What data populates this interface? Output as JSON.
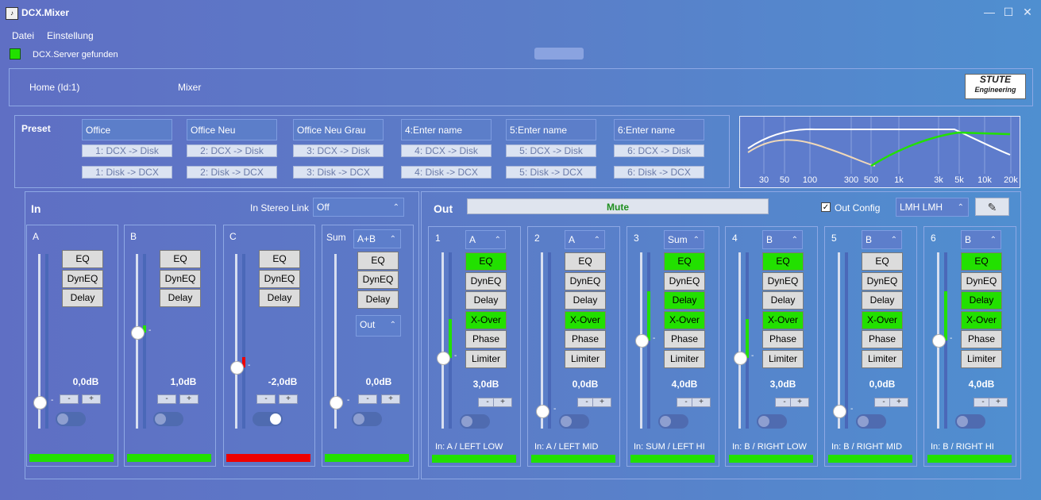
{
  "window": {
    "title": "DCX.Mixer",
    "icon": "speaker-icon"
  },
  "menu": [
    "Datei",
    "Einstellung"
  ],
  "status": {
    "text": "DCX.Server gefunden",
    "color": "#22e000"
  },
  "nav": {
    "home": "Home (Id:1)",
    "mixer": "Mixer"
  },
  "logo": {
    "line1": "STUTE",
    "line2": "Engineering"
  },
  "preset": {
    "label": "Preset",
    "slots": [
      {
        "name": "Office",
        "save": "1: DCX -> Disk",
        "load": "1: Disk -> DCX"
      },
      {
        "name": "Office Neu",
        "save": "2: DCX -> Disk",
        "load": "2: Disk -> DCX"
      },
      {
        "name": "Office Neu Grau",
        "save": "3: DCX -> Disk",
        "load": "3: Disk -> DCX"
      },
      {
        "name": "4:Enter name",
        "save": "4: DCX -> Disk",
        "load": "4: Disk -> DCX"
      },
      {
        "name": "5:Enter name",
        "save": "5: DCX -> Disk",
        "load": "5: Disk -> DCX"
      },
      {
        "name": "6:Enter name",
        "save": "6: DCX -> Disk",
        "load": "6: Disk -> DCX"
      }
    ]
  },
  "graph": {
    "freq_labels": [
      "30",
      "50",
      "100",
      "300",
      "500",
      "1k",
      "3k",
      "5k",
      "10k",
      "20k"
    ]
  },
  "in": {
    "title": "In",
    "stereo_link_label": "In Stereo Link",
    "stereo_link_value": "Off",
    "strips": [
      {
        "name": "A",
        "gain": "0,0dB",
        "level": 0.15,
        "meter": 0.0,
        "toggle_on": false,
        "bar_color": "#22e000",
        "eq": "EQ",
        "dyneq": "DynEQ",
        "delay": "Delay"
      },
      {
        "name": "B",
        "gain": "1,0dB",
        "level": 0.55,
        "meter": 0.04,
        "toggle_on": false,
        "bar_color": "#22e000",
        "eq": "EQ",
        "dyneq": "DynEQ",
        "delay": "Delay"
      },
      {
        "name": "C",
        "gain": "-2,0dB",
        "level": 0.35,
        "meter": 0.06,
        "toggle_on": true,
        "bar_color": "#ee0000",
        "eq": "EQ",
        "dyneq": "DynEQ",
        "delay": "Delay"
      }
    ],
    "sum": {
      "name": "Sum",
      "source": "A+B",
      "out": "Out",
      "gain": "0,0dB",
      "level": 0.15,
      "eq": "EQ",
      "dyneq": "DynEQ",
      "delay": "Delay",
      "bar_color": "#22e000"
    }
  },
  "out": {
    "title": "Out",
    "mute": "Mute",
    "config_label": "Out Config",
    "config_checked": true,
    "config_value": "LMH LMH",
    "buttons": [
      "EQ",
      "DynEQ",
      "Delay",
      "X-Over",
      "Phase",
      "Limiter"
    ],
    "strips": [
      {
        "num": "1",
        "src": "A",
        "gain": "3,0dB",
        "level": 0.4,
        "meter": 0.22,
        "active": [
          true,
          false,
          false,
          true,
          false,
          false
        ],
        "label": "In: A / LEFT LOW"
      },
      {
        "num": "2",
        "src": "A",
        "gain": "0,0dB",
        "level": 0.1,
        "meter": 0.0,
        "active": [
          false,
          false,
          false,
          true,
          false,
          false
        ],
        "label": "In: A / LEFT MID"
      },
      {
        "num": "3",
        "src": "Sum",
        "gain": "4,0dB",
        "level": 0.5,
        "meter": 0.28,
        "active": [
          true,
          false,
          true,
          true,
          false,
          false
        ],
        "label": "In: SUM / LEFT HI"
      },
      {
        "num": "4",
        "src": "B",
        "gain": "3,0dB",
        "level": 0.4,
        "meter": 0.22,
        "active": [
          true,
          false,
          false,
          true,
          false,
          false
        ],
        "label": "In: B / RIGHT LOW"
      },
      {
        "num": "5",
        "src": "B",
        "gain": "0,0dB",
        "level": 0.1,
        "meter": 0.0,
        "active": [
          false,
          false,
          false,
          true,
          false,
          false
        ],
        "label": "In: B / RIGHT MID"
      },
      {
        "num": "6",
        "src": "B",
        "gain": "4,0dB",
        "level": 0.5,
        "meter": 0.28,
        "active": [
          true,
          false,
          true,
          true,
          false,
          false
        ],
        "label": "In: B / RIGHT HI"
      }
    ]
  }
}
